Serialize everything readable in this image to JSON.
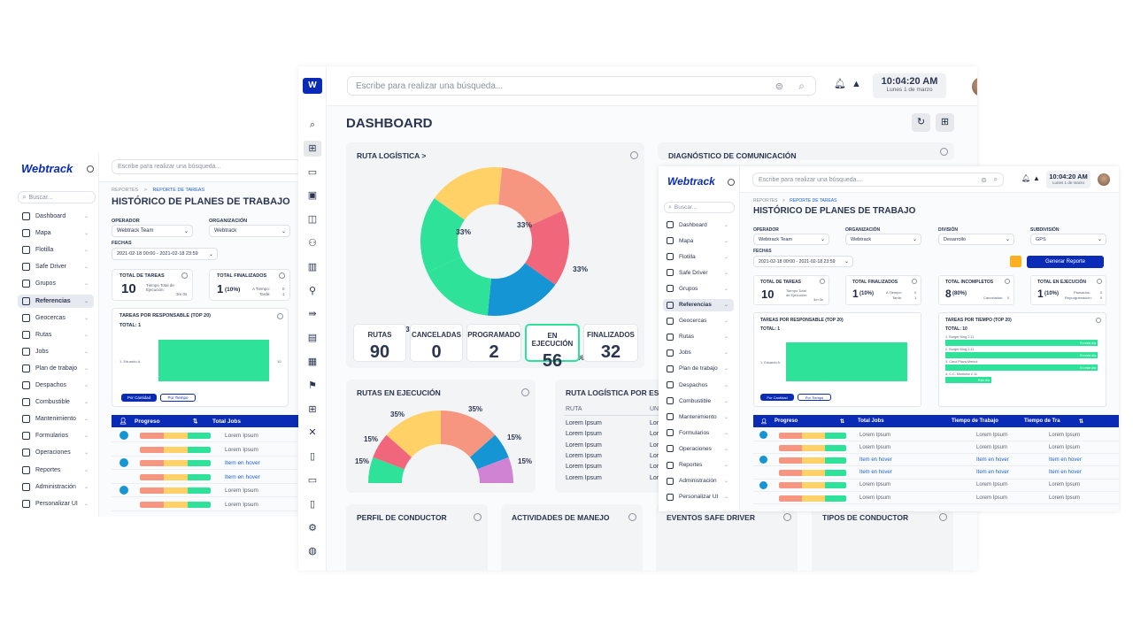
{
  "left": {
    "brand": "Webtrack",
    "search_placeholder": "Escribe para realizar una búsqueda...",
    "sidebar_search": "Buscar...",
    "menu": [
      "Dashboard",
      "Mapa",
      "Flotilla",
      "Safe Driver",
      "Grupos",
      "Referencias",
      "Geocercas",
      "Rutas",
      "Jobs",
      "Plan de trabajo",
      "Despachos",
      "Combustible",
      "Mantenimiento",
      "Formularios",
      "Operaciones",
      "Reportes",
      "Administración",
      "Personalizar UI"
    ],
    "breadcrumb_1": "REPORTES",
    "breadcrumb_sep": ">",
    "breadcrumb_2": "REPORTE DE TAREAS",
    "title": "HISTÓRICO DE PLANES DE TRABAJO",
    "operador_label": "OPERADOR",
    "operador_value": "Webtrack Team",
    "organizacion_label": "ORGANIZACIÓN",
    "organizacion_value": "Webtrack",
    "fechas_label": "FECHAS",
    "fechas_value": "2021-02-18 00:00 - 2021-02-18 23:59",
    "total_tareas_label": "TOTAL DE TAREAS",
    "total_tareas_value": "10",
    "tiempo_label": "Tiempo Total de Ejecución:",
    "tiempo_value": "3m 0s",
    "total_fin_label": "TOTAL FINALIZADOS",
    "total_fin_value": "1",
    "total_fin_pct": "(10%)",
    "a_tiempo_label": "A Tiempo:",
    "a_tiempo_value": "0",
    "tarde_label": "Tarde:",
    "tarde_value": "1",
    "chart_title": "TAREAS POR RESPONSABLE (TOP 20)",
    "chart_total": "TOTAL: 1",
    "chart_bar_label": "1. Eduardo A.",
    "chart_bar_value": "10",
    "btn_cantidad": "Por Cantidad",
    "btn_tiempo": "Por Tiempo",
    "col_progreso": "Progreso",
    "col_total_jobs": "Total Jobs",
    "sort_icon": "⇅",
    "rows": [
      "Lorem Ipsum",
      "Lorem Ipsum",
      "Item en hover",
      "Item en hover",
      "Lorem Ipsum",
      "Lorem Ipsum"
    ]
  },
  "main": {
    "search_placeholder": "Escribe para realizar una búsqueda...",
    "time": "10:04:20 AM",
    "date": "Lunes 1 de marzo",
    "title": "DASHBOARD",
    "ruta_title": "RUTA LOGÍSTICA",
    "ruta_arrow": ">",
    "stats": [
      {
        "label": "RUTAS",
        "value": "90"
      },
      {
        "label": "CANCELADAS",
        "value": "0"
      },
      {
        "label": "PROGRAMADO",
        "value": "2"
      },
      {
        "label": "EN EJECUCIÓN",
        "value": "56"
      },
      {
        "label": "FINALIZADOS",
        "value": "32"
      }
    ],
    "diag_title": "DIAGNÓSTICO DE COMUNICACIÓN",
    "rutas_ejec_title": "RUTAS EN EJECUCIÓN",
    "rutalog_est_title": "RUTA LOGÍSTICA POR EST",
    "rutalog_col1": "RUTA",
    "rutalog_col2": "UN",
    "rutalog_rows": [
      "Lorem Ipsum",
      "Lorem Ipsum",
      "Lorem Ipsum",
      "Lorem Ipsum",
      "Lorem Ipsum",
      "Lorem Ipsum"
    ],
    "rutalog_rows2": [
      "Lor",
      "Lor",
      "Lor",
      "Lor",
      "Lor",
      "Lor"
    ],
    "bottom_cards": [
      "PERFIL DE CONDUCTOR",
      "ACTIVIDADES DE MANEJO",
      "EVENTOS SAFE DRIVER",
      "TIPOS DE CONDUCTOR"
    ]
  },
  "right": {
    "brand": "Webtrack",
    "search_placeholder": "Escribe para realizar una búsqueda...",
    "sidebar_search": "Buscar...",
    "time": "10:04:20 AM",
    "date": "Lunes 1 de marzo",
    "menu": [
      "Dashboard",
      "Mapa",
      "Flotilla",
      "Safe Driver",
      "Grupos",
      "Referencias",
      "Geocercas",
      "Rutas",
      "Jobs",
      "Plan de trabajo",
      "Despachos",
      "Combustible",
      "Mantenimiento",
      "Formularios",
      "Operaciones",
      "Reportes",
      "Administración",
      "Personalizar UI"
    ],
    "breadcrumb_1": "REPORTES",
    "breadcrumb_sep": ">",
    "breadcrumb_2": "REPORTE DE TAREAS",
    "title": "HISTÓRICO DE PLANES DE TRABAJO",
    "operador_label": "OPERADOR",
    "operador_value": "Webtrack Team",
    "organizacion_label": "ORGANIZACIÓN",
    "organizacion_value": "Webtrack",
    "division_label": "DIVISIÓN",
    "division_value": "Desarrollo",
    "subdivision_label": "SUBDIVISIÓN",
    "subdivision_value": "GPS",
    "fechas_label": "FECHAS",
    "fechas_value": "2021-02-18 00:00 - 2021-02-18 23:59",
    "generar": "Generar Reporte",
    "s1_label": "TOTAL DE TAREAS",
    "s1_value": "10",
    "s1_sub": "Tiempo Total de Ejecución:",
    "s1_sub_val": "3m 0s",
    "s2_label": "TOTAL FINALIZADOS",
    "s2_value": "1",
    "s2_pct": "(10%)",
    "s2_sub1": "A Tiempo:",
    "s2_sub1_val": "0",
    "s2_sub2": "Tarde:",
    "s2_sub2_val": "1",
    "s3_label": "TOTAL INCOMPLETOS",
    "s3_value": "8",
    "s3_pct": "(80%)",
    "s3_sub": "Cancelados:",
    "s3_sub_val": "0",
    "s4_label": "TOTAL EN EJECUCIÓN",
    "s4_value": "1",
    "s4_pct": "(10%)",
    "s4_sub1": "Pausados:",
    "s4_sub1_val": "0",
    "s4_sub2": "Reprogramación:",
    "s4_sub2_val": "0",
    "resp_title": "TAREAS POR RESPONSABLE (TOP 20)",
    "resp_total": "TOTAL: 1",
    "resp_bar_label": "1. Eduardo A.",
    "tiempo_title": "TAREAS POR TIEMPO (TOP 20)",
    "tiempo_total": "TOTAL: 10",
    "tiempo_items": [
      {
        "label": "1. Burger King 2.11",
        "tag": "En este día"
      },
      {
        "label": "2. Burger King 2.11",
        "tag": "En este día"
      },
      {
        "label": "3. Carol Plaza Merkol",
        "tag": "En este día"
      },
      {
        "label": "4. C.C. Montufar 2.11",
        "tag": "Este día"
      }
    ],
    "btn_cantidad": "Por Cantidad",
    "btn_tiempo": "Por Tiempo",
    "col_progreso": "Progreso",
    "col_total_jobs": "Total Jobs",
    "col_tiempo_trabajo": "Tiempo de Trabajo",
    "col_tiempo_tra": "Tiempo de Tra",
    "sort_icon": "⇅",
    "rows": [
      "Lorem Ipsum",
      "Lorem Ipsum",
      "Item en hover",
      "Item en hover",
      "Lorem Ipsum",
      "Lorem Ipsum"
    ]
  },
  "chart_data": [
    {
      "type": "pie",
      "title": "RUTA LOGÍSTICA",
      "categories": [
        "",
        "",
        "",
        "",
        "",
        ""
      ],
      "values": [
        33,
        33,
        33,
        33,
        33,
        33
      ],
      "colors": [
        "#ffd166",
        "#f79680",
        "#f0667b",
        "#1595d3",
        "#2ee29a",
        "#2ee29a"
      ]
    },
    {
      "type": "pie",
      "title": "RUTAS EN EJECUCIÓN",
      "categories": [
        "",
        "",
        "",
        "",
        "",
        ""
      ],
      "values": [
        15,
        15,
        35,
        35,
        15,
        15
      ],
      "colors": [
        "#2ee29a",
        "#f0667b",
        "#ffd166",
        "#f79680",
        "#1595d3",
        "#cf83d2"
      ]
    }
  ],
  "colors": {
    "accent": "#0a2bb5",
    "green": "#2ee29a",
    "blue": "#1595d3",
    "yellow": "#ffd166",
    "salmon": "#f79680",
    "pink": "#f0667b",
    "purple": "#cf83d2"
  }
}
